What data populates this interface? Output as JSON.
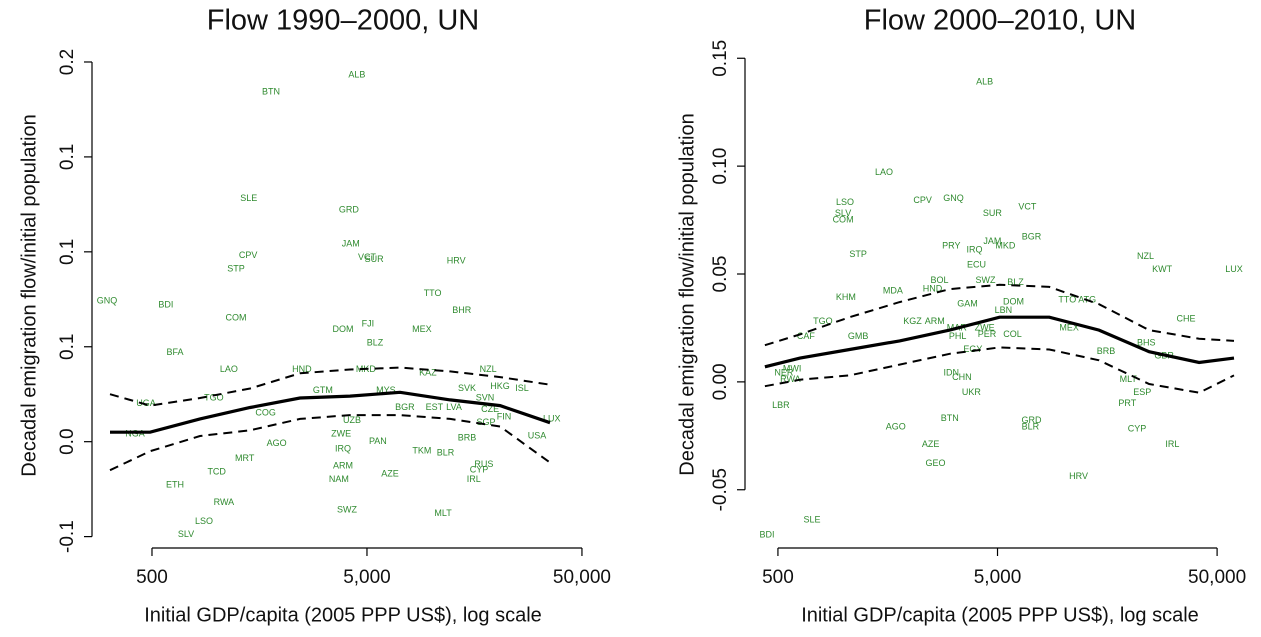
{
  "chart_data": [
    {
      "type": "scatter",
      "title": "Flow 1990–2000, UN",
      "xlabel": "Initial GDP/capita (2005 PPP US$), log scale",
      "ylabel": "Decadal emigration flow/initial population",
      "xlog": true,
      "xlim": [
        263,
        57500
      ],
      "ylim": [
        -0.056,
        0.21
      ],
      "xticks": [
        500,
        {
          "value": 5000,
          "label": "5,000"
        },
        {
          "value": 50000,
          "label": "50,000"
        }
      ],
      "yticks": [
        {
          "value": -0.05,
          "label": "-0.1"
        },
        {
          "value": 0,
          "label": "0.0"
        },
        {
          "value": 0.05,
          "label": "0.1"
        },
        {
          "value": 0.1,
          "label": "0.1"
        },
        {
          "value": 0.15,
          "label": "0.1"
        },
        {
          "value": 0.2,
          "label": "0.2"
        }
      ],
      "point_color": "#2f8a2f",
      "line_color": "#000000",
      "points": {
        "labels": [
          "ALB",
          "BTN",
          "SLE",
          "GRD",
          "JAM",
          "VCT",
          "SUR",
          "HRV",
          "CPV",
          "STP",
          "GNQ",
          "BDI",
          "TTO",
          "BHR",
          "COM",
          "FJI",
          "DOM",
          "MEX",
          "BLZ",
          "BFA",
          "LAO",
          "HND",
          "MKD",
          "KAZ",
          "NZL",
          "GTM",
          "MYS",
          "SVK",
          "HKG",
          "ISL",
          "SVN",
          "UGA",
          "TGO",
          "BGR",
          "EST",
          "LVA",
          "CZE",
          "COG",
          "FIN",
          "LUX",
          "UZB",
          "SGP",
          "NGA",
          "ZWE",
          "USA",
          "AGO",
          "BRB",
          "PAN",
          "IRQ",
          "BLR",
          "TKM",
          "MRT",
          "RUS",
          "ARM",
          "CYP",
          "AZE",
          "TCD",
          "NAM",
          "IRL",
          "ETH",
          "RWA",
          "SWZ",
          "MLT",
          "LSO",
          "SLV"
        ],
        "x": [
          4490,
          1790,
          1410,
          4120,
          4200,
          5000,
          5400,
          13000,
          1400,
          1230,
          309,
          580,
          10100,
          13800,
          1230,
          5050,
          3870,
          9000,
          5450,
          640,
          1140,
          2490,
          4940,
          9600,
          18300,
          3120,
          6120,
          14600,
          20800,
          26300,
          17700,
          469,
          970,
          7500,
          10300,
          12700,
          18700,
          1690,
          21700,
          36200,
          4260,
          17900,
          417,
          3790,
          30900,
          1900,
          14600,
          5620,
          3870,
          11600,
          9000,
          1350,
          17500,
          3870,
          16600,
          6400,
          1000,
          3700,
          15700,
          640,
          1080,
          4040,
          11300,
          873,
          720
        ],
        "y": [
          0.193,
          0.184,
          0.128,
          0.122,
          0.104,
          0.097,
          0.096,
          0.095,
          0.098,
          0.091,
          0.074,
          0.072,
          0.078,
          0.069,
          0.065,
          0.062,
          0.059,
          0.059,
          0.052,
          0.047,
          0.038,
          0.038,
          0.038,
          0.036,
          0.038,
          0.027,
          0.027,
          0.028,
          0.029,
          0.028,
          0.023,
          0.02,
          0.023,
          0.018,
          0.018,
          0.018,
          0.017,
          0.015,
          0.013,
          0.012,
          0.011,
          0.01,
          0.004,
          0.004,
          0.003,
          -0.001,
          0.002,
          0,
          -0.004,
          -0.006,
          -0.005,
          -0.009,
          -0.012,
          -0.013,
          -0.015,
          -0.017,
          -0.016,
          -0.02,
          -0.02,
          -0.023,
          -0.032,
          -0.036,
          -0.038,
          -0.042,
          -0.049
        ]
      },
      "fit": {
        "x": [
          319,
          490,
          836,
          1430,
          2440,
          4170,
          7130,
          12200,
          20800,
          35500
        ],
        "y": [
          0.005,
          0.005,
          0.012,
          0.018,
          0.023,
          0.024,
          0.026,
          0.022,
          0.019,
          0.01
        ],
        "lower": [
          -0.015,
          -0.005,
          0.003,
          0.006,
          0.012,
          0.014,
          0.014,
          0.012,
          0.008,
          -0.011
        ],
        "upper": [
          0.025,
          0.019,
          0.023,
          0.028,
          0.036,
          0.038,
          0.039,
          0.037,
          0.034,
          0.03
        ]
      }
    },
    {
      "type": "scatter",
      "title": "Flow 2000–2010, UN",
      "xlabel": "Initial GDP/capita (2005 PPP US$), log scale",
      "ylabel": "Decadal emigration flow/initial population",
      "xlog": true,
      "xlim": [
        354,
        70600
      ],
      "ylim": [
        -0.077,
        0.158
      ],
      "xticks": [
        500,
        {
          "value": 5000,
          "label": "5,000"
        },
        {
          "value": 50000,
          "label": "50,000"
        }
      ],
      "yticks": [
        -0.05,
        {
          "value": 0,
          "label": "0.00"
        },
        0.05,
        {
          "value": 0.1,
          "label": "0.10"
        },
        0.15
      ],
      "point_color": "#2f8a2f",
      "line_color": "#000000",
      "points": {
        "labels": [
          "ALB",
          "LAO",
          "LSO",
          "SLV",
          "COM",
          "CPV",
          "GNQ",
          "SUR",
          "VCT",
          "BGR",
          "PRY",
          "IRQ",
          "JAM",
          "MKD",
          "STP",
          "ECU",
          "NZL",
          "KWT",
          "LUX",
          "SWZ",
          "BLZ",
          "BOL",
          "HND",
          "MDA",
          "KHM",
          "GAM",
          "DOM",
          "TTO",
          "ATG",
          "LBN",
          "BHS",
          "CHE",
          "TGO",
          "CAF",
          "GMB",
          "KGZ",
          "ARM",
          "MAR",
          "ZWE",
          "COL",
          "PHL",
          "PER",
          "EGY",
          "MEX",
          "BRB",
          "GBR",
          "ESP",
          "NER",
          "MWI",
          "RWA",
          "IDN",
          "CHN",
          "UKR",
          "MLT",
          "PRT",
          "LBR",
          "AGO",
          "BTN",
          "GRD",
          "BLR",
          "CYP",
          "IRL",
          "AZE",
          "GEO",
          "HRV",
          "SLE",
          "BDI"
        ],
        "x": [
          4370,
          1520,
          1010,
          990,
          990,
          2280,
          3150,
          4740,
          6840,
          7140,
          3080,
          3930,
          4740,
          5430,
          1160,
          4010,
          23600,
          28100,
          59700,
          4410,
          6040,
          2720,
          2530,
          1670,
          1020,
          3650,
          5910,
          10400,
          12800,
          5320,
          23800,
          36100,
          801,
          670,
          1160,
          2050,
          2590,
          3260,
          4370,
          5850,
          3290,
          4480,
          3860,
          10600,
          15600,
          28700,
          22800,
          532,
          580,
          570,
          3080,
          3440,
          3800,
          19700,
          19500,
          516,
          1720,
          3030,
          7140,
          7060,
          21600,
          31300,
          2480,
          2610,
          11700,
          715,
          446
        ],
        "y": [
          0.139,
          0.097,
          0.083,
          0.078,
          0.075,
          0.084,
          0.085,
          0.078,
          0.081,
          0.067,
          0.063,
          0.061,
          0.065,
          0.063,
          0.059,
          0.054,
          0.058,
          0.052,
          0.052,
          0.047,
          0.046,
          0.047,
          0.043,
          0.042,
          0.039,
          0.036,
          0.037,
          0.038,
          0.038,
          0.033,
          0.018,
          0.029,
          0.028,
          0.021,
          0.021,
          0.028,
          0.028,
          0.025,
          0.025,
          0.022,
          0.021,
          0.022,
          0.015,
          0.025,
          0.014,
          0.012,
          -0.005,
          0.004,
          0.006,
          0.001,
          0.004,
          0.002,
          -0.005,
          0.001,
          -0.01,
          -0.011,
          -0.021,
          -0.017,
          -0.018,
          -0.021,
          -0.022,
          -0.029,
          -0.029,
          -0.038,
          -0.044,
          -0.064,
          -0.071
        ]
      },
      "fit": {
        "x": [
          436,
          630,
          1060,
          1790,
          3030,
          5110,
          8610,
          14500,
          24500,
          41400,
          59700
        ],
        "y": [
          0.007,
          0.011,
          0.015,
          0.019,
          0.024,
          0.03,
          0.03,
          0.024,
          0.014,
          0.009,
          0.011
        ],
        "lower": [
          -0.002,
          0.001,
          0.003,
          0.008,
          0.013,
          0.016,
          0.015,
          0.01,
          -0.001,
          -0.005,
          0.003
        ],
        "upper": [
          0.017,
          0.022,
          0.03,
          0.037,
          0.043,
          0.045,
          0.044,
          0.036,
          0.024,
          0.02,
          0.019
        ]
      }
    }
  ]
}
